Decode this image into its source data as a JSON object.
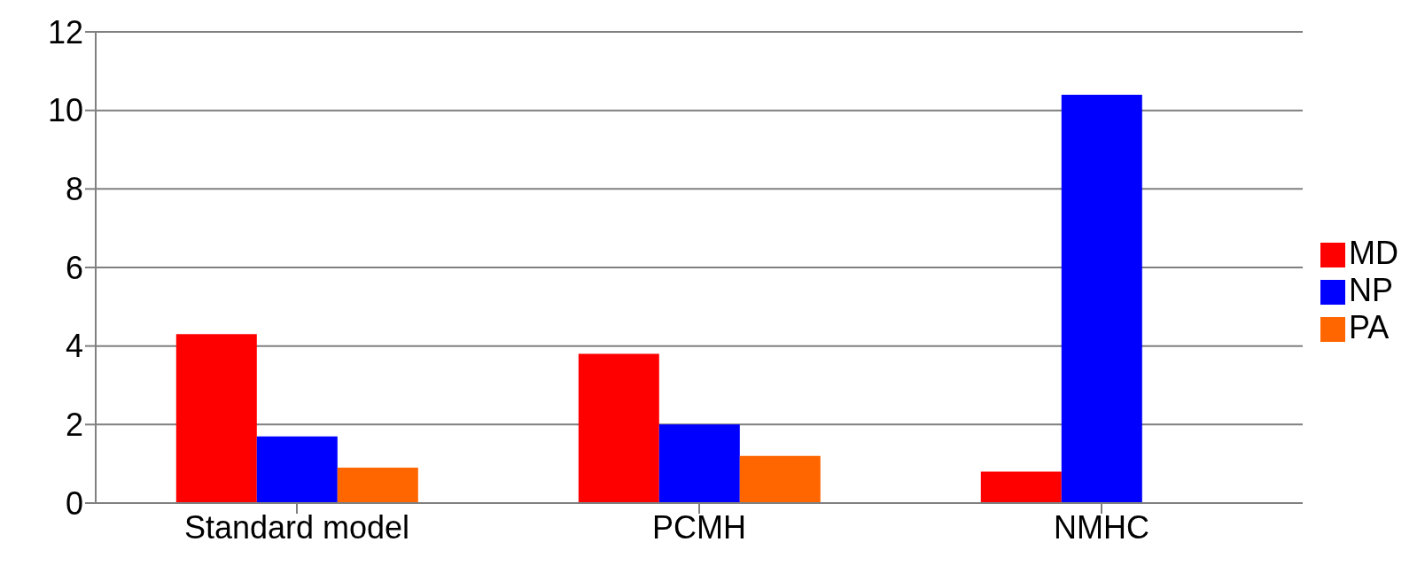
{
  "chart_data": {
    "type": "bar",
    "categories": [
      "Standard model",
      "PCMH",
      "NMHC"
    ],
    "series": [
      {
        "name": "MD",
        "color": "#ff0000",
        "values": [
          4.3,
          3.8,
          0.8
        ]
      },
      {
        "name": "NP",
        "color": "#0000ff",
        "values": [
          1.7,
          2.0,
          10.4
        ]
      },
      {
        "name": "PA",
        "color": "#ff6600",
        "values": [
          0.9,
          1.2,
          null
        ]
      }
    ],
    "ylim": [
      0,
      12
    ],
    "yticks": [
      0,
      2,
      4,
      6,
      8,
      10,
      12
    ],
    "grid": "y",
    "legend": "right"
  }
}
